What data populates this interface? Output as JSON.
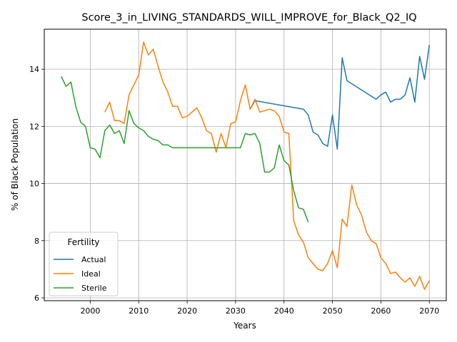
{
  "chart_data": {
    "type": "line",
    "title": "Score_3_in_LIVING_STANDARDS_WILL_IMPROVE_for_Black_Q2_IQ",
    "xlabel": "Years",
    "ylabel": "% of Black Population",
    "xlim": [
      1990.5,
      2073.5
    ],
    "ylim": [
      5.9,
      15.4
    ],
    "xticks": [
      2000,
      2010,
      2020,
      2030,
      2040,
      2050,
      2060,
      2070
    ],
    "yticks": [
      6,
      8,
      10,
      12,
      14
    ],
    "grid": true,
    "legend": {
      "title": "Fertility",
      "position": "lower-left"
    },
    "series": [
      {
        "name": "Actual",
        "color": "#1f77b4",
        "points": [
          [
            2033,
            12.6
          ],
          [
            2034,
            12.9
          ],
          [
            2044,
            12.6
          ],
          [
            2045,
            12.4
          ],
          [
            2046,
            11.8
          ],
          [
            2047,
            11.7
          ],
          [
            2048,
            11.4
          ],
          [
            2049,
            11.3
          ],
          [
            2050,
            12.4
          ],
          [
            2051,
            11.2
          ],
          [
            2052,
            14.4
          ],
          [
            2053,
            13.6
          ],
          [
            2059,
            12.95
          ],
          [
            2060,
            13.1
          ],
          [
            2061,
            13.2
          ],
          [
            2062,
            12.85
          ],
          [
            2063,
            12.95
          ],
          [
            2064,
            12.95
          ],
          [
            2065,
            13.1
          ],
          [
            2066,
            13.7
          ],
          [
            2067,
            12.85
          ],
          [
            2068,
            14.45
          ],
          [
            2069,
            13.65
          ],
          [
            2070,
            14.85
          ]
        ]
      },
      {
        "name": "Ideal",
        "color": "#ff7f0e",
        "points": [
          [
            2003,
            12.5
          ],
          [
            2004,
            12.85
          ],
          [
            2005,
            12.2
          ],
          [
            2006,
            12.2
          ],
          [
            2007,
            12.1
          ],
          [
            2008,
            13.1
          ],
          [
            2009,
            13.45
          ],
          [
            2010,
            13.8
          ],
          [
            2011,
            14.95
          ],
          [
            2012,
            14.5
          ],
          [
            2013,
            14.7
          ],
          [
            2014,
            14.1
          ],
          [
            2015,
            13.55
          ],
          [
            2016,
            13.2
          ],
          [
            2017,
            12.7
          ],
          [
            2018,
            12.7
          ],
          [
            2019,
            12.3
          ],
          [
            2020,
            12.35
          ],
          [
            2021,
            12.5
          ],
          [
            2022,
            12.65
          ],
          [
            2023,
            12.3
          ],
          [
            2024,
            11.85
          ],
          [
            2025,
            11.75
          ],
          [
            2026,
            11.1
          ],
          [
            2027,
            11.75
          ],
          [
            2028,
            11.25
          ],
          [
            2029,
            12.1
          ],
          [
            2030,
            12.15
          ],
          [
            2031,
            12.9
          ],
          [
            2032,
            13.45
          ],
          [
            2033,
            12.6
          ],
          [
            2034,
            12.95
          ],
          [
            2035,
            12.5
          ],
          [
            2036,
            12.55
          ],
          [
            2037,
            12.6
          ],
          [
            2038,
            12.55
          ],
          [
            2039,
            12.35
          ],
          [
            2040,
            11.8
          ],
          [
            2041,
            11.75
          ],
          [
            2042,
            8.7
          ],
          [
            2043,
            8.2
          ],
          [
            2044,
            7.95
          ],
          [
            2045,
            7.4
          ],
          [
            2046,
            7.2
          ],
          [
            2047,
            7.0
          ],
          [
            2048,
            6.95
          ],
          [
            2049,
            7.2
          ],
          [
            2050,
            7.65
          ],
          [
            2051,
            7.05
          ],
          [
            2052,
            8.75
          ],
          [
            2053,
            8.5
          ],
          [
            2054,
            9.95
          ],
          [
            2055,
            9.25
          ],
          [
            2056,
            8.9
          ],
          [
            2057,
            8.3
          ],
          [
            2058,
            8.0
          ],
          [
            2059,
            7.9
          ],
          [
            2060,
            7.4
          ],
          [
            2061,
            7.2
          ],
          [
            2062,
            6.85
          ],
          [
            2063,
            6.9
          ],
          [
            2064,
            6.7
          ],
          [
            2065,
            6.55
          ],
          [
            2066,
            6.7
          ],
          [
            2067,
            6.4
          ],
          [
            2068,
            6.75
          ],
          [
            2069,
            6.3
          ],
          [
            2070,
            6.6
          ]
        ]
      },
      {
        "name": "Sterile",
        "color": "#2ca02c",
        "points": [
          [
            1994,
            13.75
          ],
          [
            1995,
            13.4
          ],
          [
            1996,
            13.55
          ],
          [
            1997,
            12.7
          ],
          [
            1998,
            12.15
          ],
          [
            1999,
            12.0
          ],
          [
            2000,
            11.25
          ],
          [
            2001,
            11.2
          ],
          [
            2002,
            10.9
          ],
          [
            2003,
            11.85
          ],
          [
            2004,
            12.05
          ],
          [
            2005,
            11.75
          ],
          [
            2006,
            11.85
          ],
          [
            2007,
            11.4
          ],
          [
            2008,
            12.55
          ],
          [
            2009,
            12.1
          ],
          [
            2010,
            11.95
          ],
          [
            2011,
            11.85
          ],
          [
            2012,
            11.65
          ],
          [
            2013,
            11.55
          ],
          [
            2014,
            11.5
          ],
          [
            2015,
            11.35
          ],
          [
            2016,
            11.35
          ],
          [
            2017,
            11.25
          ],
          [
            2018,
            11.25
          ],
          [
            2019,
            11.25
          ],
          [
            2020,
            11.25
          ],
          [
            2021,
            11.25
          ],
          [
            2022,
            11.25
          ],
          [
            2023,
            11.25
          ],
          [
            2024,
            11.25
          ],
          [
            2025,
            11.25
          ],
          [
            2026,
            11.25
          ],
          [
            2027,
            11.25
          ],
          [
            2028,
            11.25
          ],
          [
            2029,
            11.25
          ],
          [
            2030,
            11.25
          ],
          [
            2031,
            11.25
          ],
          [
            2032,
            11.75
          ],
          [
            2033,
            11.7
          ],
          [
            2034,
            11.75
          ],
          [
            2035,
            11.4
          ],
          [
            2036,
            10.4
          ],
          [
            2037,
            10.4
          ],
          [
            2038,
            10.55
          ],
          [
            2039,
            11.35
          ],
          [
            2040,
            10.8
          ],
          [
            2041,
            10.65
          ],
          [
            2042,
            9.75
          ],
          [
            2043,
            9.15
          ],
          [
            2044,
            9.1
          ],
          [
            2045,
            8.65
          ]
        ]
      }
    ]
  }
}
